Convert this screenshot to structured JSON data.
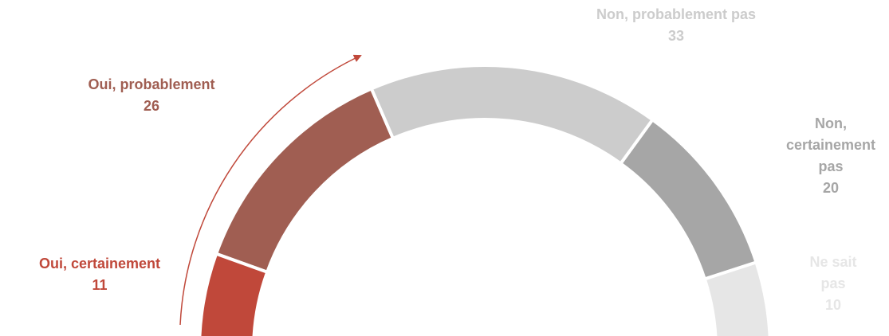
{
  "chart_data": {
    "type": "half-donut",
    "categories": [
      "Oui, certainement",
      "Oui, probablement",
      "Non, probablement pas",
      "Non, certainement pas",
      "Ne sait pas"
    ],
    "values": [
      11,
      26,
      33,
      20,
      10
    ],
    "colors": [
      "#c0483a",
      "#a05e52",
      "#cccccc",
      "#a6a6a6",
      "#e6e6e6"
    ]
  }
}
